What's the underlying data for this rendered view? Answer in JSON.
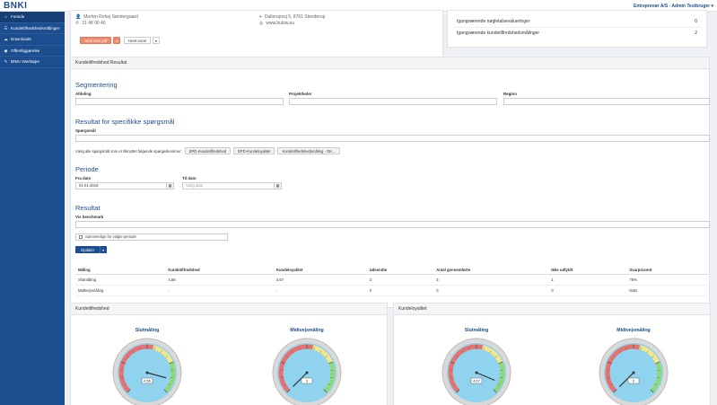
{
  "header": {
    "logo": "BNKI",
    "user": "Entreprenør A/S - Admin Testbruger ▾"
  },
  "sidebar": {
    "items": [
      {
        "label": "Forside",
        "icon": "home-icon",
        "glyph": "⌂"
      },
      {
        "label": "Kundetilfredshedsmålinger",
        "icon": "survey-icon",
        "glyph": "☰"
      },
      {
        "label": "Downloads",
        "icon": "cloud-download-icon",
        "glyph": "☁"
      },
      {
        "label": "Offentliggørelse",
        "icon": "globe-icon",
        "glyph": "◉"
      },
      {
        "label": "BNKI Værktøjer",
        "icon": "wrench-icon",
        "glyph": "✎"
      }
    ]
  },
  "contact": {
    "name": "Morten Rohej Søndergaard",
    "phone": "31 48 90 46",
    "address": "Dalleruposj 5, 8761 Stenderup",
    "web": "www.bulow.eu",
    "btn_primary": "Gem som pdf",
    "btn_secondary": "Hent excel"
  },
  "ongoing": {
    "rows": [
      {
        "label": "Igangværende nøgletalsevalueringer",
        "count": "0"
      },
      {
        "label": "Igangværende kundetilfredshedsmålinger",
        "count": "2"
      }
    ]
  },
  "results_panel": {
    "title": "Kundetilfredshed Resultat",
    "segmentation": {
      "title": "Segmentering",
      "afdeling": "Afdeling",
      "projektleder": "Projektleder",
      "region": "Region"
    },
    "specific": {
      "title": "Resultat for specifikke spørgsmål",
      "question_label": "Spørgsmål",
      "hint": "Vælg alle spørgsmål som er tilknyttet følgende spørgeskemmer:",
      "chips": [
        "EPD-Kundetilfredshed",
        "EPD-Kundeloyalitet",
        "Kundetilfredshedsmåling - OK..."
      ]
    },
    "period": {
      "title": "Periode",
      "from_label": "Fra dato",
      "from_value": "01-01-2019",
      "to_label": "Til dato",
      "to_placeholder": "Vælg dato"
    },
    "result": {
      "title": "Resultat",
      "benchmark_label": "Vis benchmark",
      "compare_checkbox": "Sammenlign for valgte periode",
      "update_button": "Opdatér"
    },
    "table": {
      "headers": [
        "Måling",
        "Kundetilfredshed",
        "Kundeloyalitet",
        "Udsendte",
        "Antal gennemførte",
        "Ikke udfyldt",
        "Svarprocent"
      ],
      "rows": [
        [
          "Slutmåling",
          "4,56",
          "4,67",
          "3",
          "3",
          "1",
          "75%"
        ],
        [
          "Midtvejsmåling",
          "-",
          "-",
          "0",
          "0",
          "0",
          "NaN"
        ]
      ]
    }
  },
  "gauge_panels": [
    {
      "title": "Kundetilfredshed",
      "gauges": [
        {
          "title": "Slutmåling",
          "value": 4.56,
          "readout": "4,56"
        },
        {
          "title": "Midtvejsmåling",
          "value": 0,
          "readout": "0"
        }
      ]
    },
    {
      "title": "Kundeloyalitet",
      "gauges": [
        {
          "title": "Slutmåling",
          "value": 4.67,
          "readout": "4,67"
        },
        {
          "title": "Midtvejsmåling",
          "value": 0,
          "readout": "0"
        }
      ]
    }
  ],
  "colors": {
    "brand": "#1c4e8f",
    "accent": "#f0896b",
    "gauge_face": "#8fd3ef"
  }
}
